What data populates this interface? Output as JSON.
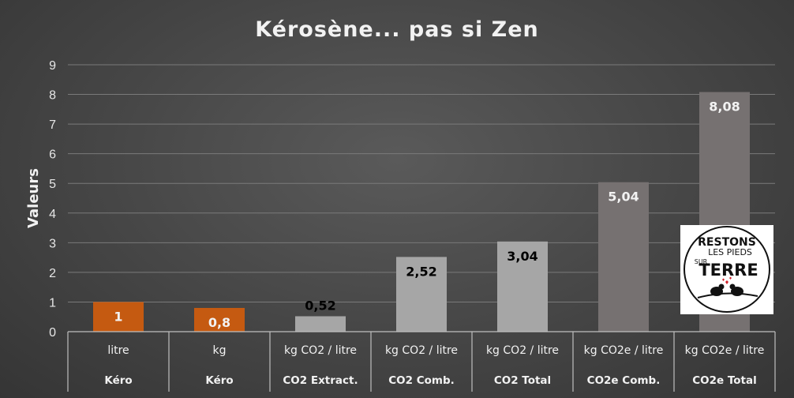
{
  "chart_data": {
    "type": "bar",
    "title": "Kérosène... pas si Zen",
    "ylabel": "Valeurs",
    "ylim": [
      0,
      9
    ],
    "yticks": [
      "0",
      "1",
      "2",
      "3",
      "4",
      "5",
      "6",
      "7",
      "8",
      "9"
    ],
    "grid": true,
    "categories": [
      {
        "unit": "litre",
        "group": "Kéro"
      },
      {
        "unit": "kg",
        "group": "Kéro"
      },
      {
        "unit": "kg CO2 / litre",
        "group": "CO2 Extract."
      },
      {
        "unit": "kg CO2 / litre",
        "group": "CO2 Comb."
      },
      {
        "unit": "kg CO2 / litre",
        "group": "CO2 Total"
      },
      {
        "unit": "kg CO2e / litre",
        "group": "CO2e Comb."
      },
      {
        "unit": "kg CO2e / litre",
        "group": "CO2e Total"
      }
    ],
    "values": [
      1,
      0.8,
      0.52,
      2.52,
      3.04,
      5.04,
      8.08
    ],
    "value_labels": [
      "1",
      "0,8",
      "0,52",
      "2,52",
      "3,04",
      "5,04",
      "8,08"
    ],
    "bar_colors": [
      "#c55a11",
      "#c55a11",
      "#a6a6a6",
      "#a6a6a6",
      "#a6a6a6",
      "#767171",
      "#767171"
    ],
    "label_colors": [
      "#f2f2f2",
      "#f2f2f2",
      "#000000",
      "#000000",
      "#000000",
      "#f2f2f2",
      "#f2f2f2"
    ]
  },
  "logo": {
    "line1": "RESTONS",
    "line2": "LES PIEDS",
    "line3": "SUR",
    "line4": "TERRE",
    "icon": "birds-on-branch-icon"
  }
}
